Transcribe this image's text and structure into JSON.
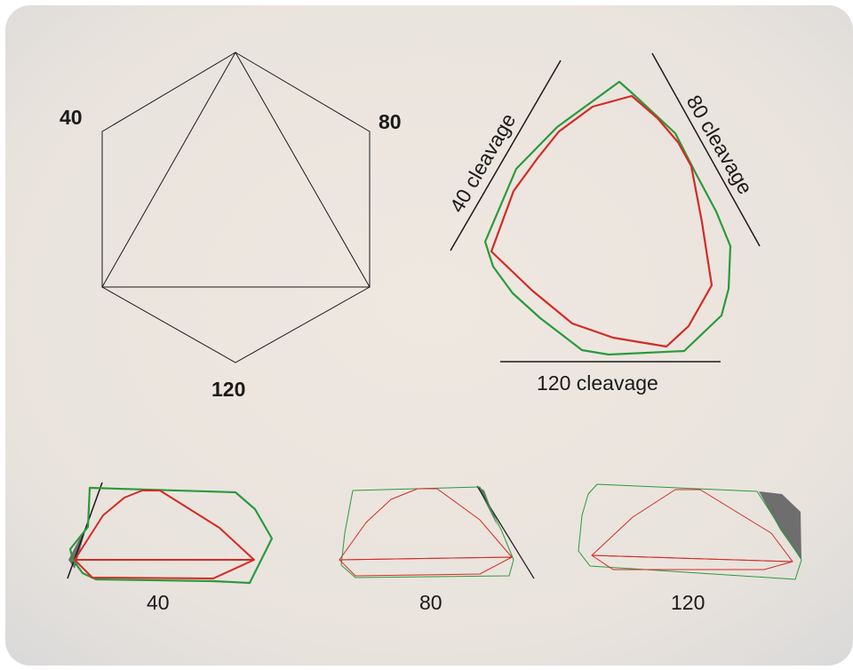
{
  "colors": {
    "panel_fill": "#ece5de",
    "panel_edge": "#d6d6d6",
    "line": "#1a1a1a",
    "outline_green": "#2a9a3c",
    "outline_red": "#d42a24",
    "shadow_gray": "#6e6e6e"
  },
  "hexagon": {
    "labels": {
      "left": "40",
      "right": "80",
      "bottom": "120"
    }
  },
  "cleavage_view": {
    "labels": {
      "left": "40 cleavage",
      "right": "80 cleavage",
      "bottom": "120 cleavage"
    }
  },
  "side_views": {
    "labels": [
      "40",
      "80",
      "120"
    ]
  }
}
